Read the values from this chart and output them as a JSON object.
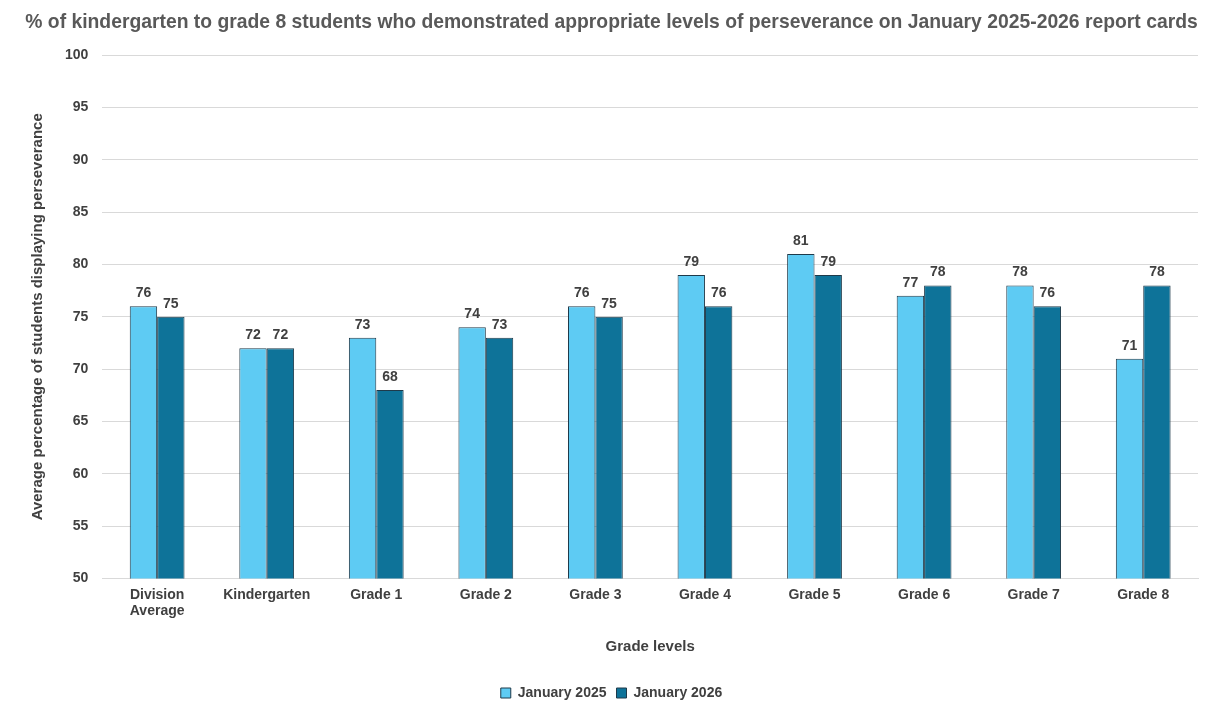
{
  "chart_data": {
    "type": "bar",
    "title": "% of kindergarten to grade 8 students who demonstrated appropriate levels of perseverance on January 2025-2026 report cards",
    "xlabel": "Grade levels",
    "ylabel": "Average percentage of students displaying perseverance",
    "categories": [
      "Division Average",
      "Kindergarten",
      "Grade 1",
      "Grade 2",
      "Grade 3",
      "Grade 4",
      "Grade 5",
      "Grade 6",
      "Grade 7",
      "Grade 8"
    ],
    "series": [
      {
        "name": "January 2025",
        "color": "#5ecbf3",
        "values": [
          76,
          72,
          73,
          74,
          76,
          79,
          81,
          77,
          78,
          71
        ]
      },
      {
        "name": "January 2026",
        "color": "#0e7399",
        "values": [
          75,
          72,
          68,
          73,
          75,
          76,
          79,
          78,
          76,
          78
        ]
      }
    ],
    "ylim": [
      50,
      100
    ],
    "yticks": [
      50,
      55,
      60,
      65,
      70,
      75,
      80,
      85,
      90,
      95,
      100
    ],
    "grid": "y",
    "legend": "bottom",
    "data_labels": true
  }
}
